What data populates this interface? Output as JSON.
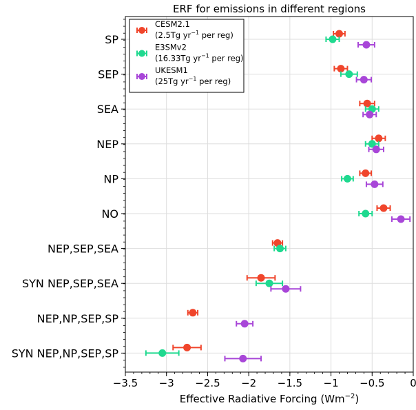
{
  "chart_data": {
    "type": "scatter",
    "title": "ERF for emissions in different regions",
    "xlabel": "Effective Radiative Forcing (Wm",
    "xlabel_sup": "−2",
    "xlabel_close": ")",
    "xlim": [
      -3.5,
      0
    ],
    "xticks": [
      -3.5,
      -3,
      -2.5,
      -2,
      -1.5,
      -1,
      -0.5,
      0
    ],
    "xtick_labels": [
      "−3.5",
      "−3",
      "−2.5",
      "−2",
      "−1.5",
      "−1",
      "−0.5",
      "0"
    ],
    "grid": true,
    "legend_position": "top-left",
    "categories": [
      "SP",
      "SEP",
      "SEA",
      "NEP",
      "NP",
      "NO",
      "NEP,SEP,SEA",
      "SYN NEP,SEP,SEA",
      "NEP,NP,SEP,SP",
      "SYN NEP,NP,SEP,SP"
    ],
    "series": [
      {
        "name": "CESM2.1",
        "legend_detail": [
          "(2.5Tg yr",
          "−1",
          " per reg)"
        ],
        "color": "#f0452b",
        "values": [
          -0.9,
          -0.88,
          -0.56,
          -0.42,
          -0.58,
          -0.36,
          -1.65,
          -1.85,
          -2.68,
          -2.75
        ],
        "errors": [
          0.07,
          0.08,
          0.09,
          0.08,
          0.07,
          0.08,
          0.06,
          0.17,
          0.06,
          0.17
        ]
      },
      {
        "name": "E3SMv2",
        "legend_detail": [
          "(16.33Tg yr",
          "−1",
          " per reg)"
        ],
        "color": "#1fd98f",
        "values": [
          -0.98,
          -0.78,
          -0.5,
          -0.5,
          -0.8,
          -0.58,
          -1.62,
          -1.75,
          null,
          -3.05
        ],
        "errors": [
          0.08,
          0.1,
          0.08,
          0.08,
          0.07,
          0.08,
          0.07,
          0.16,
          null,
          0.2
        ]
      },
      {
        "name": "UKESM1",
        "legend_detail": [
          "(25Tg yr",
          "−1",
          " per reg)"
        ],
        "color": "#a846d8",
        "values": [
          -0.57,
          -0.6,
          -0.53,
          -0.45,
          -0.47,
          -0.15,
          null,
          -1.55,
          -2.05,
          -2.07
        ],
        "errors": [
          0.1,
          0.09,
          0.08,
          0.09,
          0.1,
          0.11,
          null,
          0.18,
          0.1,
          0.22
        ]
      }
    ]
  }
}
